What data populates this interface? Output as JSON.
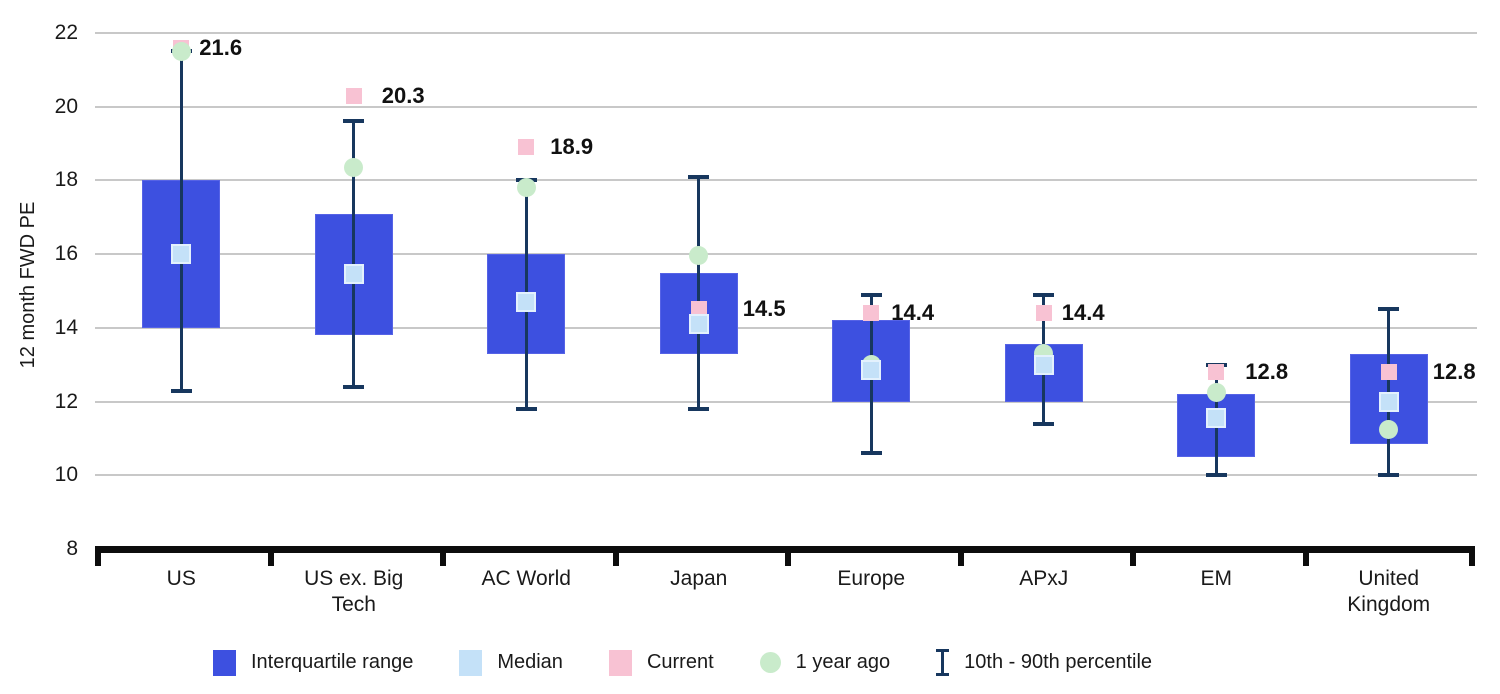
{
  "chart_data": {
    "type": "boxplot",
    "title": "",
    "ylabel": "12 month FWD PE",
    "xlabel": "",
    "ylim": [
      8,
      22
    ],
    "yticks": [
      8,
      10,
      12,
      14,
      16,
      18,
      20,
      22
    ],
    "grid": "horizontal-gray",
    "legend_position": "bottom",
    "categories": [
      "US",
      "US ex. Big Tech",
      "AC World",
      "Japan",
      "Europe",
      "APxJ",
      "EM",
      "United Kingdom"
    ],
    "regions": [
      {
        "name": "US",
        "axis_label": "US",
        "current": 21.6,
        "current_label": "21.6",
        "year_ago": 21.5,
        "median": 16.0,
        "iqr_low": 14.0,
        "iqr_high": 18.0,
        "p10": 12.3,
        "p90": 21.5,
        "label_dx": 18
      },
      {
        "name": "US ex. Big Tech",
        "axis_label": "US ex. Big\nTech",
        "current": 20.3,
        "current_label": "20.3",
        "year_ago": 18.35,
        "median": 15.45,
        "iqr_low": 13.8,
        "iqr_high": 17.1,
        "p10": 12.4,
        "p90": 19.6,
        "label_dx": 28
      },
      {
        "name": "AC World",
        "axis_label": "AC World",
        "current": 18.9,
        "current_label": "18.9",
        "year_ago": 17.8,
        "median": 14.7,
        "iqr_low": 13.3,
        "iqr_high": 16.0,
        "p10": 11.8,
        "p90": 18.0,
        "label_dx": 24
      },
      {
        "name": "Japan",
        "axis_label": "Japan",
        "current": 14.5,
        "current_label": "14.5",
        "year_ago": 15.95,
        "median": 14.1,
        "iqr_low": 13.3,
        "iqr_high": 15.5,
        "p10": 11.8,
        "p90": 18.1,
        "label_dx": 44
      },
      {
        "name": "Europe",
        "axis_label": "Europe",
        "current": 14.4,
        "current_label": "14.4",
        "year_ago": 13.0,
        "median": 12.85,
        "iqr_low": 12.0,
        "iqr_high": 14.2,
        "p10": 10.6,
        "p90": 14.9,
        "label_dx": 20
      },
      {
        "name": "APxJ",
        "axis_label": "APxJ",
        "current": 14.4,
        "current_label": "14.4",
        "year_ago": 13.3,
        "median": 13.0,
        "iqr_low": 12.0,
        "iqr_high": 13.55,
        "p10": 11.4,
        "p90": 14.9,
        "label_dx": 18
      },
      {
        "name": "EM",
        "axis_label": "EM",
        "current": 12.8,
        "current_label": "12.8",
        "year_ago": 12.25,
        "median": 11.55,
        "iqr_low": 10.5,
        "iqr_high": 12.2,
        "p10": 10.0,
        "p90": 13.0,
        "label_dx": 29
      },
      {
        "name": "United Kingdom",
        "axis_label": "United\nKingdom",
        "current": 12.8,
        "current_label": "12.8",
        "year_ago": 11.25,
        "median": 12.0,
        "iqr_low": 10.85,
        "iqr_high": 13.3,
        "p10": 10.0,
        "p90": 14.5,
        "label_dx": 44
      }
    ],
    "legend": [
      {
        "type": "iqr",
        "label": "Interquartile range"
      },
      {
        "type": "median",
        "label": "Median"
      },
      {
        "type": "current",
        "label": "Current"
      },
      {
        "type": "year_ago",
        "label": "1 year ago"
      },
      {
        "type": "whisker",
        "label": "10th - 90th percentile"
      }
    ],
    "colors": {
      "interquartile": "#3D50E0",
      "median_fill": "#C4E1F8",
      "median_border": "#E3F1FD",
      "current": "#F8C2D3",
      "year_ago": "#C9EBCB",
      "whisker": "#17375E",
      "gridline": "#C8C8C8",
      "axis": "#0D0D0D",
      "text": "#1A1A1A"
    }
  }
}
